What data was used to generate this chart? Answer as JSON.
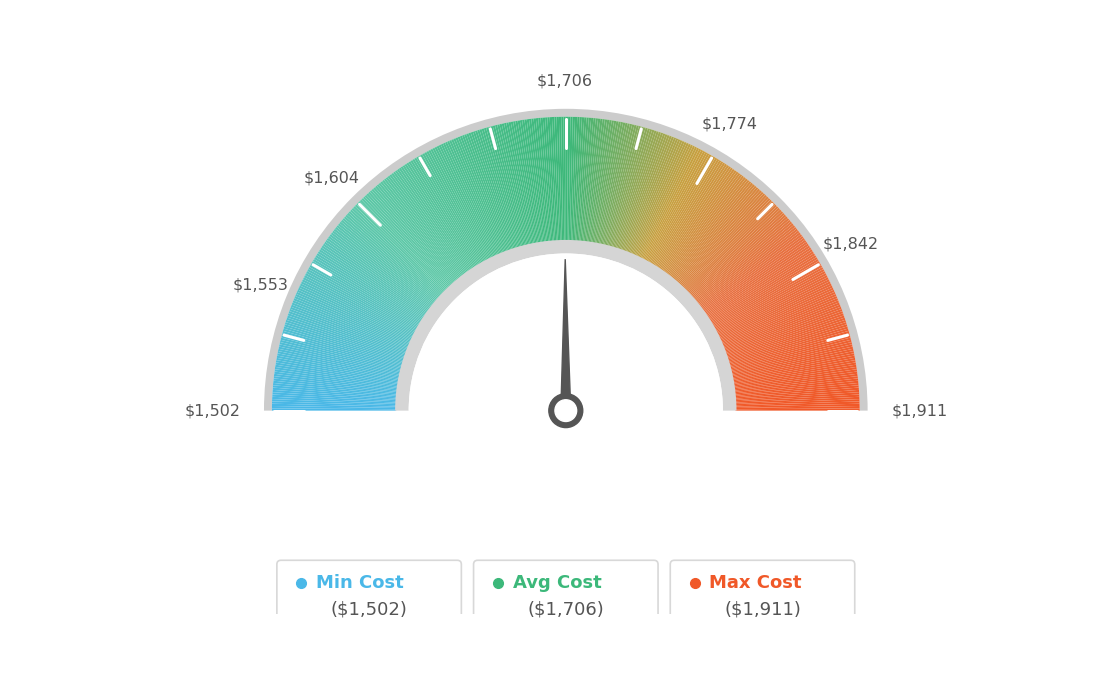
{
  "min_val": 1502,
  "max_val": 1911,
  "avg_val": 1706,
  "tick_labels": [
    "$1,502",
    "$1,553",
    "$1,604",
    "$1,706",
    "$1,774",
    "$1,842",
    "$1,911"
  ],
  "tick_values": [
    1502,
    1553,
    1604,
    1706,
    1774,
    1842,
    1911
  ],
  "legend_items": [
    {
      "label": "Min Cost",
      "value": "($1,502)",
      "color": "#4ab8e8"
    },
    {
      "label": "Avg Cost",
      "value": "($1,706)",
      "color": "#3cb87a"
    },
    {
      "label": "Max Cost",
      "value": "($1,911)",
      "color": "#f05828"
    }
  ],
  "bg_color": "#ffffff",
  "needle_value": 1706,
  "color_stops": [
    [
      0.0,
      "#4ab8e8"
    ],
    [
      0.25,
      "#5ec8a8"
    ],
    [
      0.497,
      "#3db87a"
    ],
    [
      0.503,
      "#3db87a"
    ],
    [
      0.65,
      "#c8a040"
    ],
    [
      0.8,
      "#e87040"
    ],
    [
      1.0,
      "#f05828"
    ]
  ]
}
